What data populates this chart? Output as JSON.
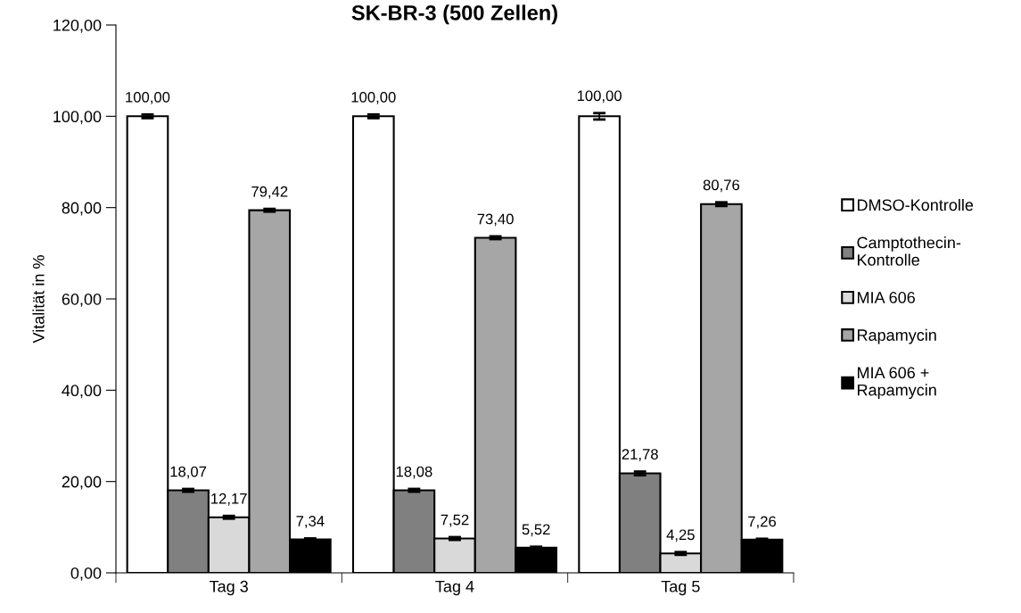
{
  "chart_data": {
    "type": "bar",
    "title": "SK-BR-3 (500 Zellen)",
    "ylabel": "Vitalität in %",
    "categories": [
      "Tag 3",
      "Tag 4",
      "Tag 5"
    ],
    "ylim": [
      0,
      120
    ],
    "yticks": [
      {
        "value": 0,
        "label": "0,00"
      },
      {
        "value": 20,
        "label": "20,00"
      },
      {
        "value": 40,
        "label": "40,00"
      },
      {
        "value": 60,
        "label": "60,00"
      },
      {
        "value": 80,
        "label": "80,00"
      },
      {
        "value": 100,
        "label": "100,00"
      },
      {
        "value": 120,
        "label": "120,00"
      }
    ],
    "grid": false,
    "legend": "right",
    "series": [
      {
        "name": "DMSO-Kontrolle",
        "color": "#ffffff",
        "values": [
          100.0,
          100.0,
          100.0
        ],
        "errors": [
          0.4,
          0.4,
          0.7
        ],
        "value_labels": [
          "100,00",
          "100,00",
          "100,00"
        ]
      },
      {
        "name": "Camptothecin-\nKontrolle",
        "color": "#808080",
        "values": [
          18.07,
          18.08,
          21.78
        ],
        "errors": [
          0.3,
          0.3,
          0.4
        ],
        "value_labels": [
          "18,07",
          "18,08",
          "21,78"
        ]
      },
      {
        "name": "MIA 606",
        "color": "#d9d9d9",
        "values": [
          12.17,
          7.52,
          4.25
        ],
        "errors": [
          0.3,
          0.3,
          0.3
        ],
        "value_labels": [
          "12,17",
          "7,52",
          "4,25"
        ]
      },
      {
        "name": "Rapamycin",
        "color": "#a6a6a6",
        "values": [
          79.42,
          73.4,
          80.76
        ],
        "errors": [
          0.3,
          0.3,
          0.4
        ],
        "value_labels": [
          "79,42",
          "73,40",
          "80,76"
        ]
      },
      {
        "name": "MIA 606 +\nRapamycin",
        "color": "#000000",
        "values": [
          7.34,
          5.52,
          7.26
        ],
        "errors": [
          0.2,
          0.2,
          0.2
        ],
        "value_labels": [
          "7,34",
          "5,52",
          "7,26"
        ]
      }
    ]
  }
}
